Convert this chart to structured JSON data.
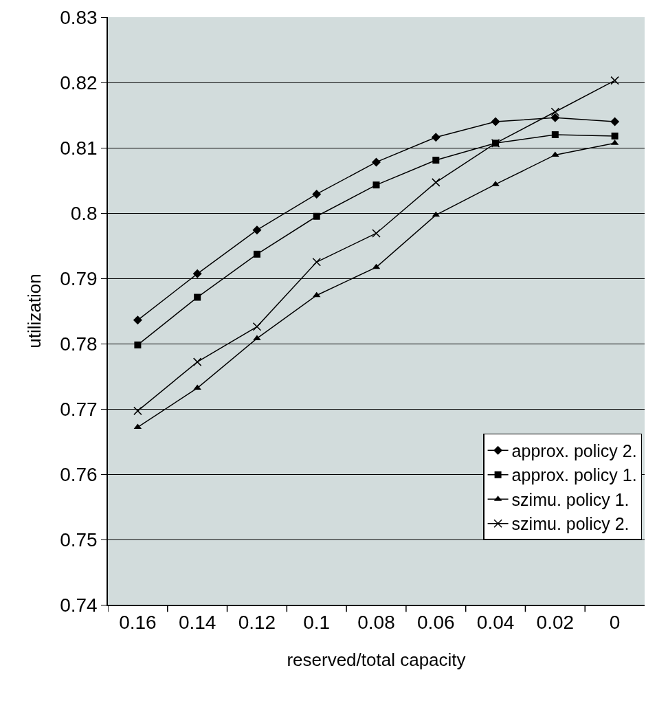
{
  "chart_data": {
    "type": "line",
    "xlabel": "reserved/total capacity",
    "ylabel": "utilization",
    "categories": [
      "0.16",
      "0.14",
      "0.12",
      "0.1",
      "0.08",
      "0.06",
      "0.04",
      "0.02",
      "0"
    ],
    "ylim": [
      0.74,
      0.83
    ],
    "yticks": [
      0.74,
      0.75,
      0.76,
      0.77,
      0.78,
      0.79,
      0.8,
      0.81,
      0.82,
      0.83
    ],
    "grid": "y",
    "legend": "bottom right",
    "line_style": "solid",
    "series": [
      {
        "name": "approx. policy 2.",
        "color": "#000000",
        "marker": "diamond",
        "values": [
          0.7836,
          0.7907,
          0.7974,
          0.8029,
          0.8078,
          0.8116,
          0.814,
          0.8146,
          0.814
        ]
      },
      {
        "name": "approx. policy 1.",
        "color": "#000000",
        "marker": "square",
        "values": [
          0.7798,
          0.7871,
          0.7937,
          0.7995,
          0.8043,
          0.8081,
          0.8107,
          0.812,
          0.8118
        ]
      },
      {
        "name": "szimu. policy 1.",
        "color": "#000000",
        "marker": "triangle",
        "values": [
          0.7672,
          0.7732,
          0.7808,
          0.7874,
          0.7917,
          0.7997,
          0.8044,
          0.8089,
          0.8107
        ]
      },
      {
        "name": "szimu. policy 2.",
        "color": "#000000",
        "marker": "cross",
        "values": [
          0.7697,
          0.7772,
          0.7826,
          0.7925,
          0.7969,
          0.8047,
          0.8107,
          0.8155,
          0.8203
        ]
      }
    ]
  }
}
